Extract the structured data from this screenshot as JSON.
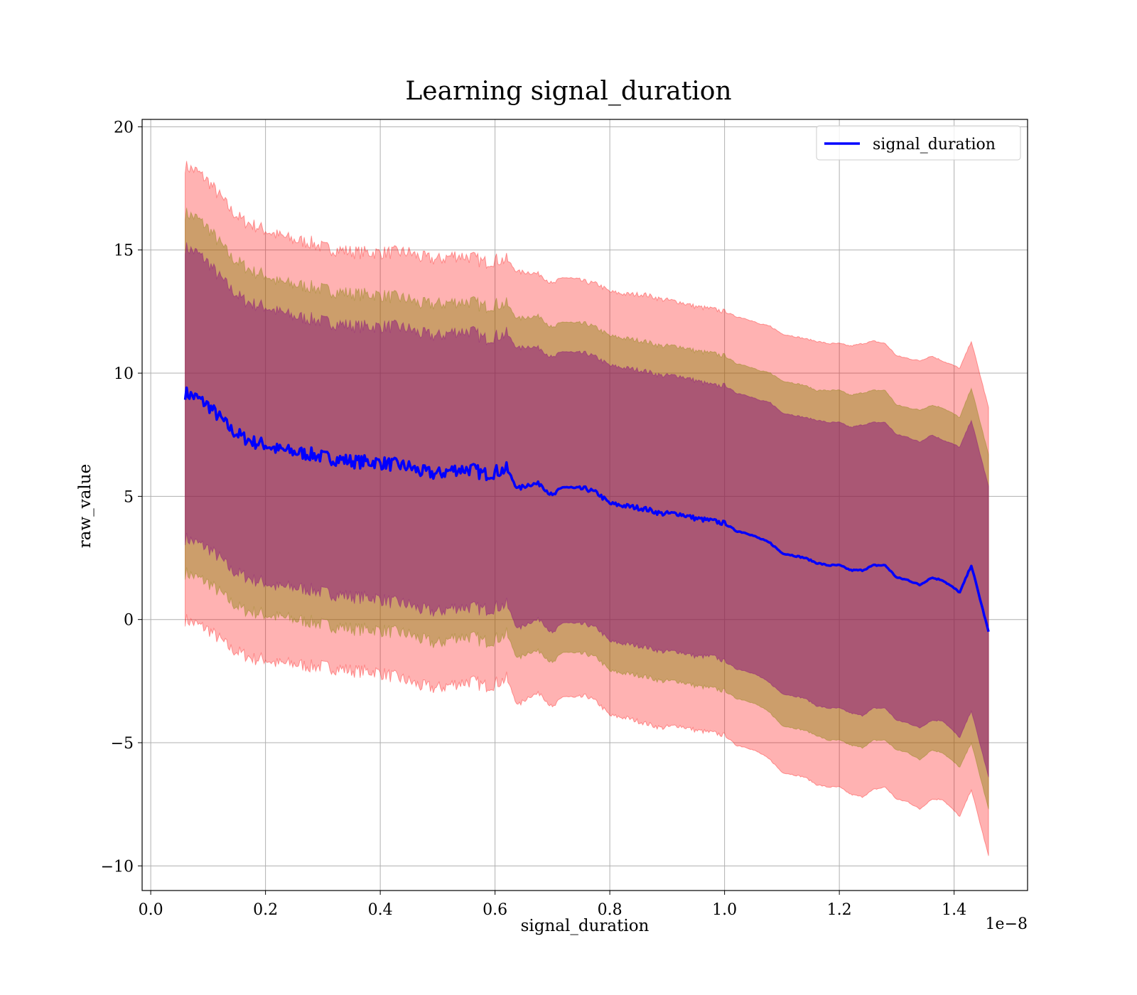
{
  "chart_data": {
    "type": "line",
    "title": "Learning signal_duration",
    "xlabel": "signal_duration",
    "ylabel": "raw_value",
    "x_offset_label": "1e−8",
    "xlim": [
      -0.015,
      1.528
    ],
    "ylim": [
      -11,
      20.3
    ],
    "x_ticks": [
      0.0,
      0.2,
      0.4,
      0.6,
      0.8,
      1.0,
      1.2,
      1.4
    ],
    "x_tick_labels": [
      "0.0",
      "0.2",
      "0.4",
      "0.6",
      "0.8",
      "1.0",
      "1.2",
      "1.4"
    ],
    "y_ticks": [
      -10,
      -5,
      0,
      5,
      10,
      15,
      20
    ],
    "y_tick_labels": [
      "−10",
      "−5",
      "0",
      "5",
      "10",
      "15",
      "20"
    ],
    "grid": true,
    "legend": {
      "position": "top-right",
      "entries": [
        "signal_duration"
      ]
    },
    "colors": {
      "line": "#0000ff",
      "band_3sigma": "#ff0000",
      "band_2sigma": "#808000",
      "band_1sigma": "#800080"
    },
    "series": [
      {
        "name": "signal_duration",
        "x": [
          0.06,
          0.08,
          0.1,
          0.12,
          0.14,
          0.16,
          0.18,
          0.2,
          0.22,
          0.25,
          0.28,
          0.3,
          0.33,
          0.36,
          0.39,
          0.42,
          0.45,
          0.47,
          0.5,
          0.53,
          0.56,
          0.58,
          0.6,
          0.62,
          0.64,
          0.66,
          0.68,
          0.7,
          0.72,
          0.74,
          0.76,
          0.78,
          0.8,
          0.83,
          0.86,
          0.89,
          0.92,
          0.95,
          0.98,
          1.0,
          1.02,
          1.04,
          1.06,
          1.08,
          1.1,
          1.12,
          1.14,
          1.16,
          1.18,
          1.2,
          1.22,
          1.24,
          1.26,
          1.28,
          1.3,
          1.32,
          1.34,
          1.36,
          1.38,
          1.41,
          1.43,
          1.46
        ],
        "y": [
          9.2,
          9.0,
          8.7,
          8.2,
          7.7,
          7.4,
          7.2,
          7.1,
          6.9,
          6.8,
          6.7,
          6.6,
          6.5,
          6.4,
          6.4,
          6.3,
          6.2,
          6.0,
          5.9,
          6.1,
          6.1,
          5.9,
          6.0,
          6.1,
          5.3,
          5.5,
          5.5,
          5.0,
          5.4,
          5.3,
          5.3,
          5.1,
          4.7,
          4.6,
          4.5,
          4.3,
          4.3,
          4.1,
          4.0,
          3.9,
          3.6,
          3.5,
          3.3,
          3.1,
          2.7,
          2.6,
          2.5,
          2.3,
          2.2,
          2.2,
          2.0,
          2.0,
          2.2,
          2.2,
          1.7,
          1.6,
          1.4,
          1.7,
          1.6,
          1.1,
          2.2,
          -0.5
        ]
      }
    ],
    "bands": [
      {
        "name": "±3σ",
        "half_width": [
          9.2,
          9.2,
          9.1,
          9.0,
          8.9,
          8.8,
          8.8,
          8.7,
          8.7,
          8.6,
          8.6,
          8.5,
          8.5,
          8.5,
          8.5,
          8.6,
          8.7,
          8.7,
          8.7,
          8.7,
          8.6,
          8.6,
          8.6,
          8.5,
          8.8,
          8.6,
          8.5,
          8.6,
          8.5,
          8.5,
          8.4,
          8.5,
          8.6,
          8.6,
          8.7,
          8.7,
          8.6,
          8.6,
          8.6,
          8.6,
          8.7,
          8.7,
          8.7,
          8.8,
          8.9,
          8.9,
          8.9,
          9.0,
          9.0,
          9.0,
          9.1,
          9.2,
          9.1,
          9.0,
          9.0,
          9.0,
          9.1,
          9.0,
          8.9,
          9.1,
          9.1,
          9.1
        ]
      },
      {
        "name": "±2σ",
        "half_width": [
          7.3,
          7.3,
          7.2,
          7.1,
          7.0,
          7.0,
          6.9,
          6.9,
          6.8,
          6.8,
          6.8,
          6.8,
          6.8,
          6.8,
          6.8,
          6.8,
          6.8,
          6.8,
          6.9,
          6.8,
          6.8,
          6.8,
          6.8,
          6.7,
          6.9,
          6.8,
          6.8,
          6.8,
          6.7,
          6.7,
          6.7,
          6.7,
          6.8,
          6.8,
          6.8,
          6.8,
          6.8,
          6.8,
          6.8,
          6.8,
          6.8,
          6.8,
          6.8,
          6.9,
          7.0,
          7.0,
          7.0,
          7.0,
          7.1,
          7.1,
          7.1,
          7.2,
          7.1,
          7.1,
          7.0,
          7.0,
          7.1,
          7.0,
          7.0,
          7.1,
          7.2,
          7.2
        ]
      },
      {
        "name": "±1σ",
        "half_width": [
          5.9,
          5.9,
          5.8,
          5.7,
          5.7,
          5.6,
          5.6,
          5.6,
          5.6,
          5.5,
          5.5,
          5.5,
          5.5,
          5.5,
          5.5,
          5.6,
          5.6,
          5.6,
          5.6,
          5.6,
          5.6,
          5.5,
          5.5,
          5.5,
          5.7,
          5.6,
          5.5,
          5.6,
          5.5,
          5.5,
          5.5,
          5.5,
          5.6,
          5.6,
          5.6,
          5.6,
          5.6,
          5.6,
          5.5,
          5.6,
          5.6,
          5.6,
          5.6,
          5.7,
          5.7,
          5.7,
          5.7,
          5.8,
          5.8,
          5.8,
          5.8,
          5.9,
          5.8,
          5.8,
          5.8,
          5.8,
          5.8,
          5.8,
          5.7,
          5.9,
          5.9,
          5.9
        ]
      }
    ]
  }
}
